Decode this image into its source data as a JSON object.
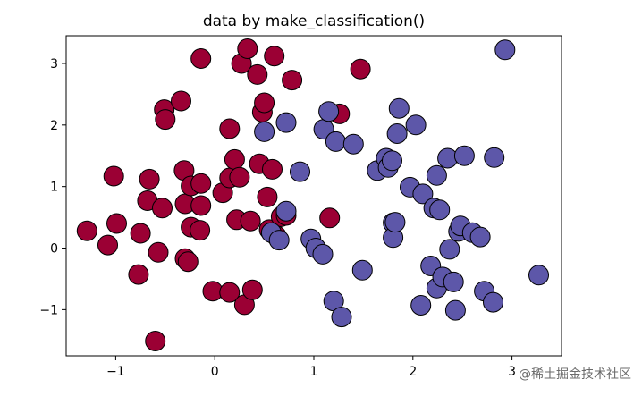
{
  "chart_data": {
    "type": "scatter",
    "title": "data by make_classification()",
    "xlabel": "",
    "ylabel": "",
    "xlim": [
      -1.5,
      3.5
    ],
    "ylim": [
      -1.75,
      3.45
    ],
    "xticks": [
      -1,
      0,
      1,
      2,
      3
    ],
    "yticks": [
      -1,
      0,
      1,
      2,
      3
    ],
    "xtick_labels": [
      "−1",
      "0",
      "1",
      "2",
      "3"
    ],
    "ytick_labels": [
      "−1",
      "0",
      "1",
      "2",
      "3"
    ],
    "grid": false,
    "marker_edge_color": "#000000",
    "series": [
      {
        "color": "#9b0034",
        "points": [
          [
            -1.29,
            0.28
          ],
          [
            -1.08,
            0.05
          ],
          [
            -1.02,
            1.17
          ],
          [
            -0.99,
            0.4
          ],
          [
            -0.77,
            -0.43
          ],
          [
            -0.75,
            0.24
          ],
          [
            -0.68,
            0.77
          ],
          [
            -0.66,
            1.12
          ],
          [
            -0.6,
            -1.51
          ],
          [
            -0.57,
            -0.07
          ],
          [
            -0.53,
            0.65
          ],
          [
            -0.51,
            2.25
          ],
          [
            -0.5,
            2.09
          ],
          [
            -0.34,
            2.39
          ],
          [
            -0.31,
            1.26
          ],
          [
            -0.3,
            0.72
          ],
          [
            -0.3,
            -0.17
          ],
          [
            -0.27,
            -0.22
          ],
          [
            -0.24,
            1.01
          ],
          [
            -0.24,
            0.34
          ],
          [
            -0.15,
            0.29
          ],
          [
            -0.14,
            1.05
          ],
          [
            -0.14,
            0.69
          ],
          [
            -0.14,
            3.08
          ],
          [
            -0.02,
            -0.7
          ],
          [
            0.08,
            0.9
          ],
          [
            0.15,
            1.14
          ],
          [
            0.15,
            1.94
          ],
          [
            0.15,
            -0.72
          ],
          [
            0.2,
            1.44
          ],
          [
            0.22,
            0.46
          ],
          [
            0.25,
            1.15
          ],
          [
            0.27,
            3.0
          ],
          [
            0.3,
            -0.92
          ],
          [
            0.33,
            3.24
          ],
          [
            0.36,
            0.44
          ],
          [
            0.38,
            -0.68
          ],
          [
            0.43,
            2.82
          ],
          [
            0.45,
            1.37
          ],
          [
            0.48,
            2.21
          ],
          [
            0.5,
            2.36
          ],
          [
            0.53,
            0.83
          ],
          [
            0.55,
            0.3
          ],
          [
            0.58,
            1.28
          ],
          [
            0.6,
            3.12
          ],
          [
            0.62,
            0.2
          ],
          [
            0.67,
            0.51
          ],
          [
            0.72,
            0.53
          ],
          [
            0.78,
            2.73
          ],
          [
            1.16,
            0.49
          ],
          [
            1.26,
            2.18
          ],
          [
            1.47,
            2.91
          ]
        ]
      },
      {
        "color": "#5d57a9",
        "points": [
          [
            0.5,
            1.89
          ],
          [
            0.57,
            0.25
          ],
          [
            0.65,
            0.13
          ],
          [
            0.72,
            2.04
          ],
          [
            0.72,
            0.6
          ],
          [
            0.86,
            1.24
          ],
          [
            0.97,
            0.15
          ],
          [
            1.02,
            0.0
          ],
          [
            1.09,
            -0.1
          ],
          [
            1.1,
            1.93
          ],
          [
            1.15,
            2.22
          ],
          [
            1.2,
            -0.86
          ],
          [
            1.22,
            1.73
          ],
          [
            1.28,
            -1.12
          ],
          [
            1.4,
            1.69
          ],
          [
            1.49,
            -0.36
          ],
          [
            1.64,
            1.26
          ],
          [
            1.73,
            1.46
          ],
          [
            1.75,
            1.31
          ],
          [
            1.79,
            1.42
          ],
          [
            1.8,
            0.41
          ],
          [
            1.8,
            0.17
          ],
          [
            1.82,
            0.42
          ],
          [
            1.84,
            1.86
          ],
          [
            1.86,
            2.27
          ],
          [
            1.97,
            0.99
          ],
          [
            2.03,
            2.0
          ],
          [
            2.08,
            -0.93
          ],
          [
            2.1,
            0.88
          ],
          [
            2.18,
            -0.29
          ],
          [
            2.21,
            0.65
          ],
          [
            2.24,
            -0.65
          ],
          [
            2.24,
            1.18
          ],
          [
            2.27,
            0.62
          ],
          [
            2.3,
            -0.47
          ],
          [
            2.35,
            1.46
          ],
          [
            2.37,
            -0.02
          ],
          [
            2.41,
            -0.55
          ],
          [
            2.43,
            -1.01
          ],
          [
            2.46,
            0.27
          ],
          [
            2.48,
            0.36
          ],
          [
            2.52,
            1.5
          ],
          [
            2.6,
            0.25
          ],
          [
            2.68,
            0.18
          ],
          [
            2.72,
            -0.7
          ],
          [
            2.81,
            -0.88
          ],
          [
            2.82,
            1.47
          ],
          [
            2.93,
            3.22
          ],
          [
            3.27,
            -0.44
          ]
        ]
      }
    ]
  },
  "watermark": "@稀土掘金技术社区"
}
